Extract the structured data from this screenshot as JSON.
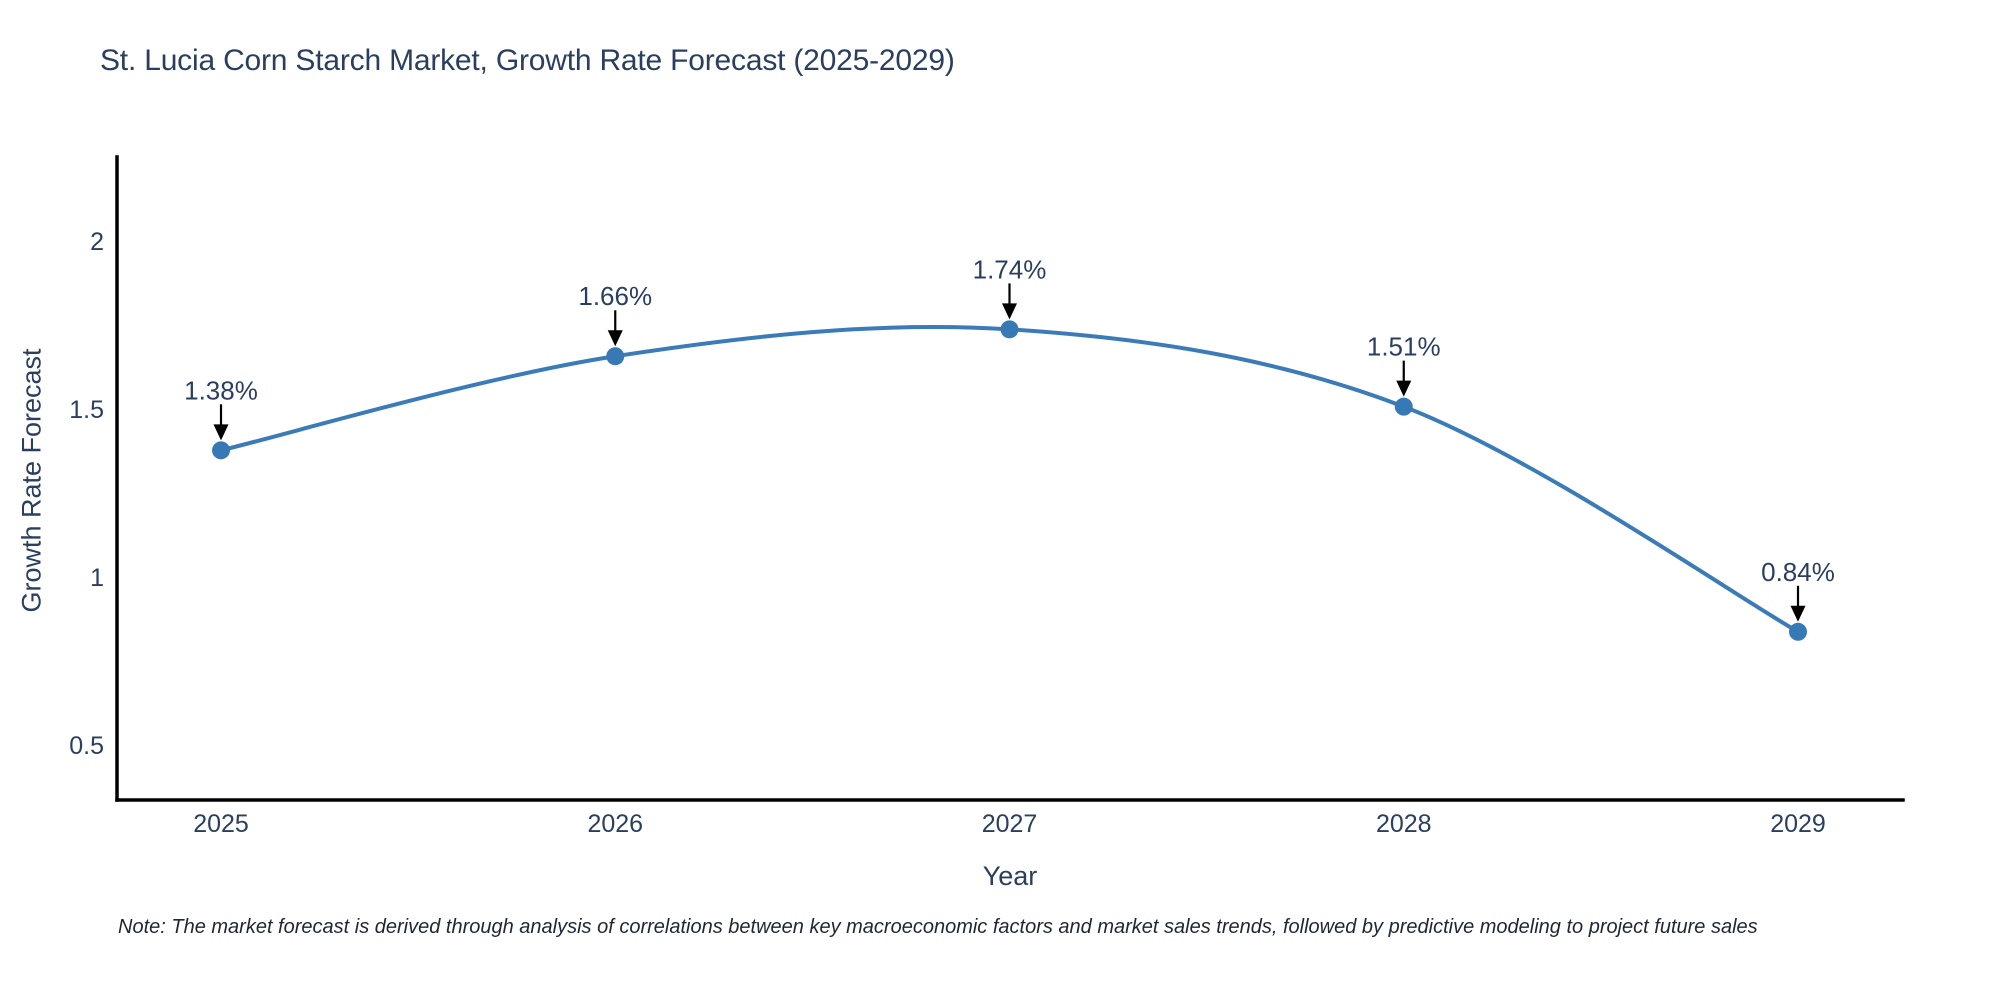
{
  "title": "St. Lucia Corn Starch Market, Growth Rate Forecast (2025-2029)",
  "note": "Note: The market forecast is derived through analysis of correlations between key macroeconomic factors and market sales trends, followed by predictive modeling to project future sales",
  "colors": {
    "line": "#3b7cb8",
    "marker": "#3779b5",
    "text": "#2a3f5f",
    "axis": "#000000",
    "arrow": "#000000",
    "background": "#ffffff"
  },
  "chart_data": {
    "type": "line",
    "line_shape": "spline",
    "x": [
      2025,
      2026,
      2027,
      2028,
      2029
    ],
    "values": [
      1.38,
      1.66,
      1.74,
      1.51,
      0.84
    ],
    "point_labels": [
      "1.38%",
      "1.66%",
      "1.74%",
      "1.51%",
      "0.84%"
    ],
    "title": "St. Lucia Corn Starch Market, Growth Rate Forecast (2025-2029)",
    "xlabel": "Year",
    "ylabel": "Growth Rate Forecast",
    "xtick_labels": [
      "2025",
      "2026",
      "2027",
      "2028",
      "2029"
    ],
    "yticks": [
      0.5,
      1,
      1.5,
      2
    ],
    "ytick_labels": [
      "0.5",
      "1",
      "1.5",
      "2"
    ],
    "ylim": [
      0.33,
      2.25
    ],
    "xlim": [
      2024.73,
      2029.27
    ],
    "grid": false,
    "legend": false,
    "annotations_have_arrows": true
  }
}
